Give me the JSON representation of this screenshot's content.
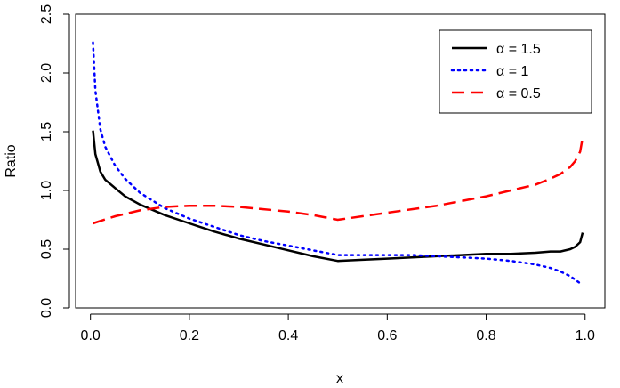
{
  "chart_data": {
    "type": "line",
    "title": "",
    "xlabel": "x",
    "ylabel": "Ratio",
    "xlim": [
      -0.03,
      1.04
    ],
    "ylim": [
      0.0,
      2.5
    ],
    "x_ticks": [
      0.0,
      0.2,
      0.4,
      0.6,
      0.8,
      1.0
    ],
    "x_tick_labels": [
      "0.0",
      "0.2",
      "0.4",
      "0.6",
      "0.8",
      "1.0"
    ],
    "y_ticks": [
      0.0,
      0.5,
      1.0,
      1.5,
      2.0,
      2.5
    ],
    "y_tick_labels": [
      "0.0",
      "0.5",
      "1.0",
      "1.5",
      "2.0",
      "2.5"
    ],
    "grid": false,
    "legend_position": "top-right",
    "series": [
      {
        "name": "α = 1.5",
        "color": "#000000",
        "style": "solid",
        "x": [
          0.005,
          0.01,
          0.02,
          0.03,
          0.05,
          0.07,
          0.1,
          0.15,
          0.2,
          0.25,
          0.3,
          0.35,
          0.4,
          0.45,
          0.5,
          0.55,
          0.6,
          0.65,
          0.7,
          0.75,
          0.8,
          0.85,
          0.9,
          0.93,
          0.95,
          0.97,
          0.98,
          0.99,
          0.995
        ],
        "y": [
          1.51,
          1.31,
          1.16,
          1.09,
          1.02,
          0.95,
          0.88,
          0.79,
          0.72,
          0.65,
          0.59,
          0.54,
          0.49,
          0.44,
          0.4,
          0.41,
          0.42,
          0.43,
          0.44,
          0.45,
          0.46,
          0.46,
          0.47,
          0.48,
          0.48,
          0.5,
          0.52,
          0.56,
          0.64
        ]
      },
      {
        "name": "α = 1",
        "color": "#0000ff",
        "style": "dotted",
        "x": [
          0.005,
          0.01,
          0.02,
          0.03,
          0.05,
          0.07,
          0.1,
          0.15,
          0.2,
          0.25,
          0.3,
          0.35,
          0.4,
          0.45,
          0.5,
          0.55,
          0.6,
          0.65,
          0.7,
          0.75,
          0.8,
          0.85,
          0.9,
          0.93,
          0.95,
          0.97,
          0.99
        ],
        "y": [
          2.26,
          1.85,
          1.52,
          1.37,
          1.21,
          1.1,
          0.98,
          0.85,
          0.76,
          0.69,
          0.62,
          0.57,
          0.53,
          0.49,
          0.45,
          0.45,
          0.45,
          0.45,
          0.44,
          0.43,
          0.42,
          0.4,
          0.37,
          0.34,
          0.31,
          0.27,
          0.21
        ]
      },
      {
        "name": "α = 0.5",
        "color": "#ff0000",
        "style": "dashed",
        "x": [
          0.005,
          0.05,
          0.1,
          0.15,
          0.2,
          0.25,
          0.3,
          0.35,
          0.4,
          0.45,
          0.5,
          0.55,
          0.6,
          0.65,
          0.7,
          0.75,
          0.8,
          0.85,
          0.9,
          0.93,
          0.95,
          0.97,
          0.98,
          0.99,
          0.995
        ],
        "y": [
          0.72,
          0.78,
          0.83,
          0.86,
          0.87,
          0.87,
          0.86,
          0.84,
          0.82,
          0.79,
          0.75,
          0.78,
          0.81,
          0.84,
          0.87,
          0.91,
          0.95,
          1.0,
          1.05,
          1.1,
          1.14,
          1.2,
          1.25,
          1.33,
          1.45
        ]
      }
    ]
  }
}
